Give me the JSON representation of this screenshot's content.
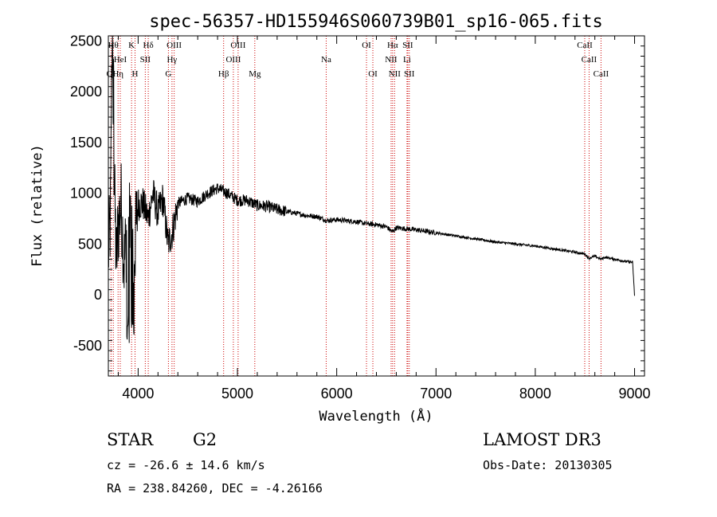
{
  "chart_data": {
    "type": "line",
    "title": "spec-56357-HD155946S060739B01_sp16-065.fits",
    "xlabel": "Wavelength (Å)",
    "ylabel": "Flux (relative)",
    "xlim": [
      3700,
      9100
    ],
    "ylim": [
      -800,
      2550
    ],
    "x_ticks": [
      4000,
      5000,
      6000,
      7000,
      8000,
      9000
    ],
    "y_ticks": [
      -500,
      0,
      500,
      1000,
      1500,
      2000,
      2500
    ],
    "spectrum_anchor_points": {
      "wavelength": [
        3700,
        3720,
        3740,
        3760,
        3780,
        3800,
        3830,
        3860,
        3900,
        3930,
        3960,
        4000,
        4050,
        4100,
        4150,
        4200,
        4250,
        4300,
        4340,
        4400,
        4500,
        4600,
        4700,
        4800,
        4900,
        5000,
        5100,
        5200,
        5300,
        5400,
        5500,
        5600,
        5700,
        5800,
        5900,
        6000,
        6100,
        6200,
        6300,
        6400,
        6500,
        6560,
        6600,
        6700,
        6800,
        7000,
        7200,
        7400,
        7600,
        7800,
        8000,
        8200,
        8400,
        8500,
        8540,
        8600,
        8660,
        8700,
        8800,
        8900,
        8980,
        9000
      ],
      "flux": [
        400,
        700,
        2400,
        1100,
        300,
        700,
        900,
        300,
        800,
        600,
        400,
        900,
        900,
        750,
        1000,
        800,
        950,
        500,
        600,
        900,
        950,
        920,
        1000,
        1050,
        1000,
        930,
        930,
        880,
        870,
        840,
        820,
        800,
        780,
        770,
        730,
        740,
        730,
        720,
        700,
        690,
        670,
        620,
        660,
        650,
        640,
        610,
        580,
        550,
        520,
        500,
        480,
        450,
        420,
        400,
        360,
        380,
        350,
        370,
        350,
        330,
        320,
        -10
      ]
    },
    "spectral_lines": [
      {
        "label": "OI",
        "wavelength": 3727,
        "row": 2
      },
      {
        "label": "Hθ",
        "wavelength": 3750,
        "row": 0
      },
      {
        "label": "Hη",
        "wavelength": 3798,
        "row": 2
      },
      {
        "label": "HeI",
        "wavelength": 3820,
        "row": 1
      },
      {
        "label": "K",
        "wavelength": 3934,
        "row": 0
      },
      {
        "label": "H",
        "wavelength": 3969,
        "row": 2
      },
      {
        "label": "SII",
        "wavelength": 4072,
        "row": 1
      },
      {
        "label": "Hδ",
        "wavelength": 4102,
        "row": 0
      },
      {
        "label": "G",
        "wavelength": 4305,
        "row": 2
      },
      {
        "label": "Hγ",
        "wavelength": 4341,
        "row": 1
      },
      {
        "label": "OIII",
        "wavelength": 4363,
        "row": 0
      },
      {
        "label": "Hβ",
        "wavelength": 4861,
        "row": 2
      },
      {
        "label": "OIII",
        "wavelength": 4959,
        "row": 1
      },
      {
        "label": "OIII",
        "wavelength": 5007,
        "row": 0
      },
      {
        "label": "Mg",
        "wavelength": 5175,
        "row": 2
      },
      {
        "label": "Na",
        "wavelength": 5894,
        "row": 1
      },
      {
        "label": "OI",
        "wavelength": 6300,
        "row": 0
      },
      {
        "label": "OI",
        "wavelength": 6364,
        "row": 2
      },
      {
        "label": "NII",
        "wavelength": 6548,
        "row": 1
      },
      {
        "label": "Hα",
        "wavelength": 6563,
        "row": 0
      },
      {
        "label": "NII",
        "wavelength": 6583,
        "row": 2
      },
      {
        "label": "SII",
        "wavelength": 6716,
        "row": 0
      },
      {
        "label": "Li",
        "wavelength": 6708,
        "row": 1
      },
      {
        "label": "SII",
        "wavelength": 6731,
        "row": 2
      },
      {
        "label": "CaII",
        "wavelength": 8498,
        "row": 0
      },
      {
        "label": "CaII",
        "wavelength": 8542,
        "row": 1
      },
      {
        "label": "CaII",
        "wavelength": 8662,
        "row": 2
      }
    ]
  },
  "info": {
    "object_class": "STAR",
    "subclass": "G2",
    "survey": "LAMOST DR3",
    "cz": "cz = -26.6 ± 14.6 km/s",
    "obs_date": "Obs-Date: 20130305",
    "coords": "RA = 238.84260, DEC =  -4.26166"
  },
  "colors": {
    "spectrum": "#000000",
    "line_marker": "#cc0000",
    "axes": "#000000"
  }
}
